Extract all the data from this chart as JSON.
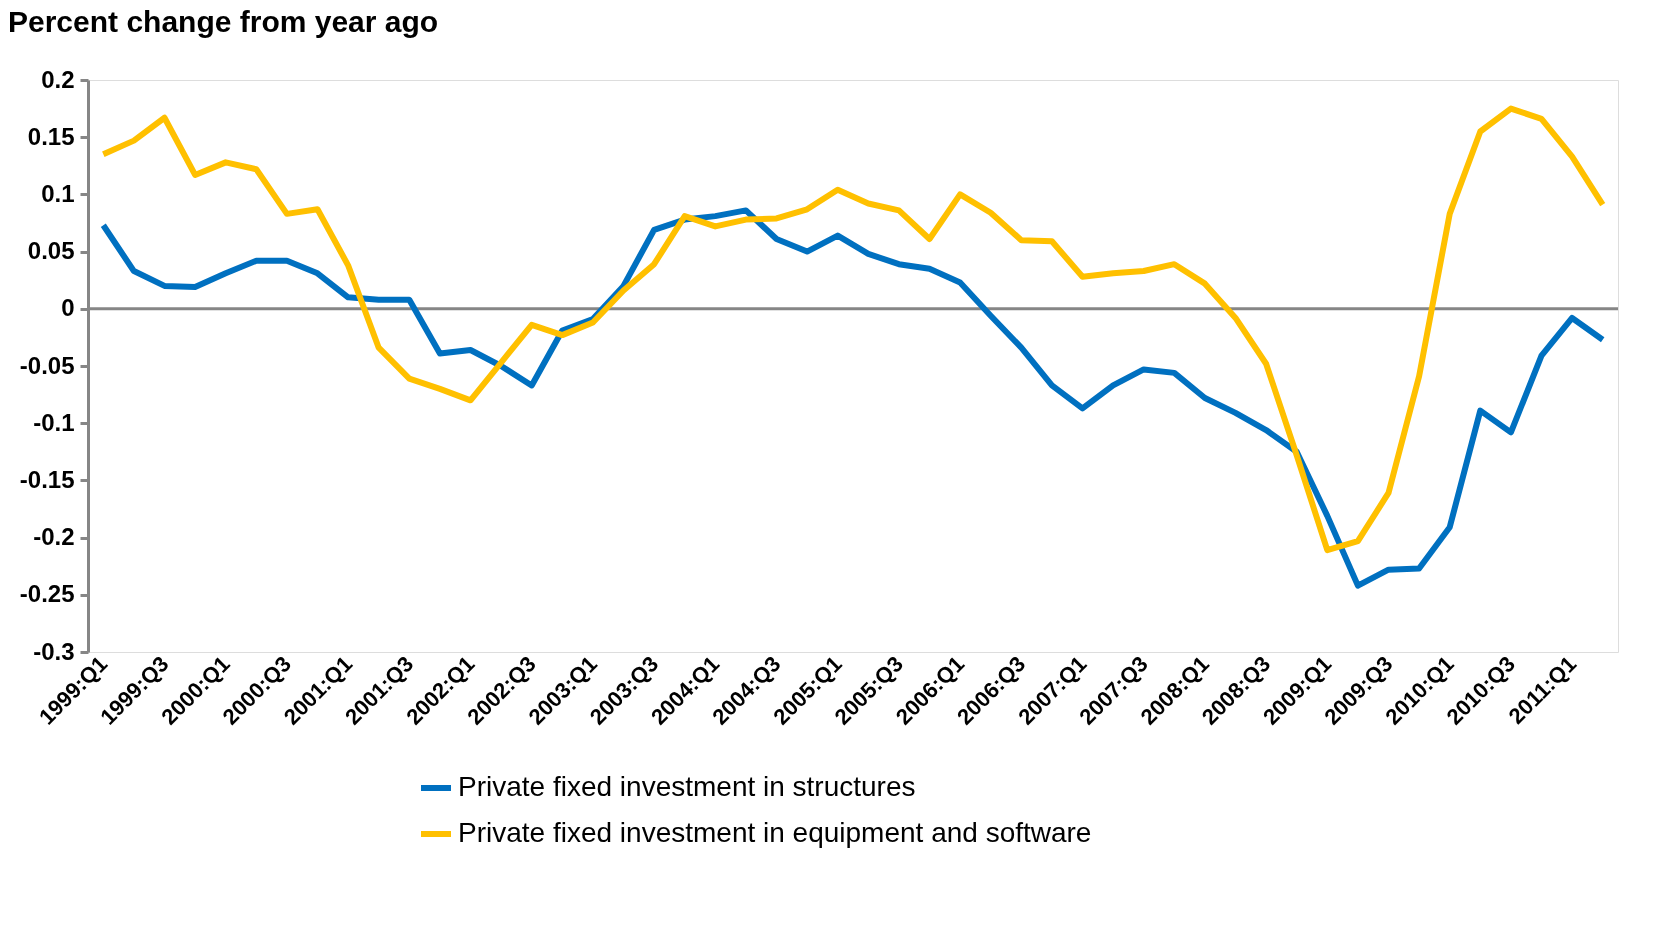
{
  "chart_data": {
    "type": "line",
    "ylabel": "Percent change from year ago",
    "categories": [
      "1999:Q1",
      null,
      "1999:Q3",
      null,
      "2000:Q1",
      null,
      "2000:Q3",
      null,
      "2001:Q1",
      null,
      "2001:Q3",
      null,
      "2002:Q1",
      null,
      "2002:Q3",
      null,
      "2003:Q1",
      null,
      "2003:Q3",
      null,
      "2004:Q1",
      null,
      "2004:Q3",
      null,
      "2005:Q1",
      null,
      "2005:Q3",
      null,
      "2006:Q1",
      null,
      "2006:Q3",
      null,
      "2007:Q1",
      null,
      "2007:Q3",
      null,
      "2008:Q1",
      null,
      "2008:Q3",
      null,
      "2009:Q1",
      null,
      "2009:Q3",
      null,
      "2010:Q1",
      null,
      "2010:Q3",
      null,
      "2011:Q1",
      null
    ],
    "series": [
      {
        "name": "Private fixed investment in structures",
        "color": "#0070c0",
        "values": [
          0.073,
          0.033,
          0.02,
          0.019,
          0.031,
          0.042,
          0.042,
          0.031,
          0.01,
          0.008,
          0.008,
          -0.039,
          -0.036,
          -0.05,
          -0.067,
          -0.019,
          -0.009,
          0.02,
          0.069,
          0.078,
          0.081,
          0.086,
          0.061,
          0.05,
          0.064,
          0.048,
          0.039,
          0.035,
          0.023,
          -0.006,
          -0.034,
          -0.067,
          -0.087,
          -0.067,
          -0.053,
          -0.056,
          -0.078,
          -0.091,
          -0.106,
          -0.125,
          -0.181,
          -0.242,
          -0.228,
          -0.227,
          -0.191,
          -0.089,
          -0.108,
          -0.041,
          -0.008,
          -0.027
        ]
      },
      {
        "name": "Private fixed investment in equipment and software",
        "color": "#ffc000",
        "values": [
          0.135,
          0.147,
          0.167,
          0.117,
          0.128,
          0.122,
          0.083,
          0.087,
          0.038,
          -0.034,
          -0.061,
          -0.07,
          -0.08,
          -0.047,
          -0.014,
          -0.023,
          -0.012,
          0.016,
          0.039,
          0.081,
          0.072,
          0.078,
          0.079,
          0.087,
          0.104,
          0.092,
          0.086,
          0.061,
          0.1,
          0.084,
          0.06,
          0.059,
          0.028,
          0.031,
          0.033,
          0.039,
          0.022,
          -0.008,
          -0.048,
          -0.128,
          -0.211,
          -0.203,
          -0.161,
          -0.059,
          0.083,
          0.155,
          0.175,
          0.166,
          0.133,
          0.091
        ]
      }
    ],
    "ylim": [
      -0.3,
      0.2
    ],
    "yticks": [
      -0.3,
      -0.25,
      -0.2,
      -0.15,
      -0.1,
      -0.05,
      0,
      0.05,
      0.1,
      0.15,
      0.2
    ],
    "ref_lines": [
      {
        "axis": "y",
        "value": 0,
        "color": "#868686"
      }
    ],
    "grid": false,
    "legend": "bottom",
    "line_style": "solid",
    "marker": "none"
  }
}
